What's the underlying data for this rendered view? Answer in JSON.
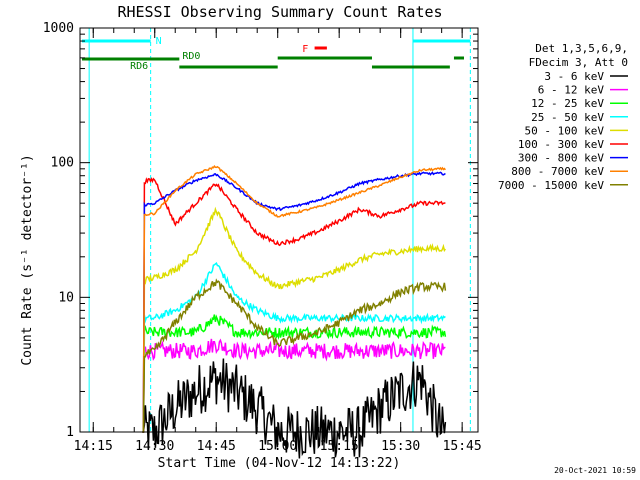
{
  "chart_data": {
    "type": "line",
    "title": "RHESSI Observing Summary Count Rates",
    "xlabel": "Start Time (04-Nov-12 14:13:22)",
    "ylabel": "Count Rate (s⁻¹ detector⁻¹)",
    "yscale": "log",
    "ylim": [
      1,
      1000
    ],
    "xlim_minutes": [
      -1.6,
      95.5
    ],
    "x_ticks": [
      "14:15",
      "14:30",
      "14:45",
      "15:00",
      "15:15",
      "15:30",
      "15:45"
    ],
    "y_ticks": [
      "1",
      "10",
      "100",
      "1000"
    ],
    "legend_header": [
      "Det 1,3,5,6,9,",
      "FDecim 3, Att 0"
    ],
    "grid": false,
    "legend_position": "right",
    "series": [
      {
        "name": "3 - 6 keV",
        "color": "#000000",
        "x": [
          "14:25",
          "14:30",
          "14:35",
          "14:40",
          "14:45",
          "14:50",
          "14:55",
          "15:00",
          "15:05",
          "15:10",
          "15:15",
          "15:20",
          "15:25",
          "15:30",
          "15:35",
          "15:40"
        ],
        "y": [
          1.0,
          1.0,
          1.5,
          2.0,
          2.5,
          2.0,
          1.5,
          1.0,
          1.0,
          1.0,
          1.0,
          1.0,
          1.5,
          2.0,
          2.5,
          1.0
        ]
      },
      {
        "name": "6 - 12 keV",
        "color": "#ff00ff",
        "x": [
          "14:25",
          "14:30",
          "14:35",
          "14:40",
          "14:45",
          "14:50",
          "14:55",
          "15:00",
          "15:05",
          "15:10",
          "15:15",
          "15:20",
          "15:25",
          "15:30",
          "15:35",
          "15:40"
        ],
        "y": [
          4.0,
          4.0,
          4.0,
          4.0,
          4.5,
          4.0,
          4.0,
          4.0,
          4.0,
          4.0,
          4.0,
          4.0,
          4.0,
          4.0,
          4.0,
          4.0
        ]
      },
      {
        "name": "12 - 25 keV",
        "color": "#00ff00",
        "x": [
          "14:25",
          "14:30",
          "14:35",
          "14:40",
          "14:45",
          "14:50",
          "14:55",
          "15:00",
          "15:05",
          "15:10",
          "15:15",
          "15:20",
          "15:25",
          "15:30",
          "15:35",
          "15:40"
        ],
        "y": [
          5.5,
          5.5,
          5.5,
          5.5,
          7.0,
          5.5,
          5.5,
          5.5,
          5.5,
          5.5,
          5.5,
          5.5,
          5.5,
          5.5,
          5.5,
          5.5
        ]
      },
      {
        "name": "25 - 50 keV",
        "color": "#00ffff",
        "x": [
          "14:25",
          "14:30",
          "14:35",
          "14:40",
          "14:45",
          "14:50",
          "14:55",
          "15:00",
          "15:05",
          "15:10",
          "15:15",
          "15:20",
          "15:25",
          "15:30",
          "15:35",
          "15:40"
        ],
        "y": [
          7.0,
          7.0,
          8.0,
          10.0,
          18.0,
          10.0,
          8.0,
          7.0,
          7.0,
          7.0,
          7.0,
          7.0,
          7.0,
          7.0,
          7.0,
          7.0
        ]
      },
      {
        "name": "50 - 100 keV",
        "color": "#dddd00",
        "x": [
          "14:25",
          "14:30",
          "14:35",
          "14:40",
          "14:45",
          "14:50",
          "14:55",
          "15:00",
          "15:05",
          "15:10",
          "15:15",
          "15:20",
          "15:25",
          "15:30",
          "15:35",
          "15:40"
        ],
        "y": [
          13,
          14,
          16,
          22,
          45,
          22,
          15,
          12,
          13,
          14,
          16,
          19,
          21,
          22,
          23,
          23
        ]
      },
      {
        "name": "100 - 300 keV",
        "color": "#ff0000",
        "x": [
          "14:25",
          "14:30",
          "14:35",
          "14:40",
          "14:45",
          "14:50",
          "14:55",
          "15:00",
          "15:05",
          "15:10",
          "15:15",
          "15:20",
          "15:25",
          "15:30",
          "15:35",
          "15:40"
        ],
        "y": [
          70,
          75,
          35,
          50,
          70,
          45,
          30,
          25,
          27,
          31,
          37,
          45,
          40,
          45,
          50,
          50
        ]
      },
      {
        "name": "300 - 800 keV",
        "color": "#0000ff",
        "x": [
          "14:25",
          "14:30",
          "14:35",
          "14:40",
          "14:45",
          "14:50",
          "14:55",
          "15:00",
          "15:05",
          "15:10",
          "15:15",
          "15:20",
          "15:25",
          "15:30",
          "15:35",
          "15:40"
        ],
        "y": [
          47,
          50,
          62,
          74,
          82,
          65,
          50,
          45,
          48,
          53,
          60,
          70,
          75,
          80,
          83,
          83
        ]
      },
      {
        "name": "800 - 7000 keV",
        "color": "#ff8000",
        "x": [
          "14:25",
          "14:30",
          "14:35",
          "14:40",
          "14:45",
          "14:50",
          "14:55",
          "15:00",
          "15:05",
          "15:10",
          "15:15",
          "15:20",
          "15:25",
          "15:30",
          "15:35",
          "15:40"
        ],
        "y": [
          40,
          42,
          62,
          82,
          94,
          70,
          50,
          40,
          43,
          47,
          53,
          60,
          68,
          78,
          88,
          90
        ]
      },
      {
        "name": "7000 - 15000 keV",
        "color": "#808000",
        "x": [
          "14:25",
          "14:30",
          "14:35",
          "14:40",
          "14:45",
          "14:50",
          "14:55",
          "15:00",
          "15:05",
          "15:10",
          "15:15",
          "15:20",
          "15:25",
          "15:30",
          "15:35",
          "15:40"
        ],
        "y": [
          3.5,
          4.0,
          6.5,
          10,
          13,
          9,
          6,
          4.5,
          5.0,
          5.5,
          6.5,
          8.0,
          9.0,
          11.0,
          12.0,
          12.0
        ]
      }
    ],
    "annotations": [
      {
        "label": "N",
        "color": "#00ffff"
      },
      {
        "label": "RD0",
        "color": "#008000"
      },
      {
        "label": "RD6",
        "color": "#008000"
      },
      {
        "label": "F",
        "color": "#ff0000"
      }
    ],
    "footer": "20-Oct-2021 10:59"
  }
}
